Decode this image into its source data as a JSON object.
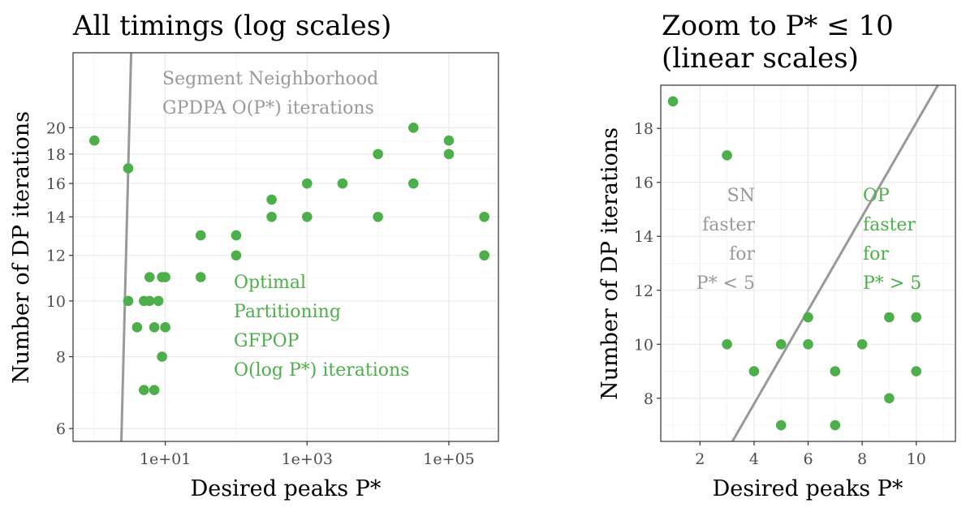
{
  "colors": {
    "point": "#4daf4a",
    "reference_line": "#999999",
    "annotation_grey": "#999999",
    "annotation_green": "#4daf4a",
    "grid_major": "#ebebeb",
    "grid_minor": "#f5f5f5",
    "panel_border": "#333333",
    "tick_text": "#4d4d4d"
  },
  "chart_data": [
    {
      "type": "scatter",
      "title": "All timings (log scales)",
      "xlabel": "Desired peaks P*",
      "ylabel": "Number of DP iterations",
      "x_scale": "log10",
      "y_scale": "log",
      "xlim": [
        0.5,
        500000
      ],
      "ylim": [
        5.7,
        27
      ],
      "x_ticks": [
        10,
        1000,
        100000
      ],
      "x_tick_labels": [
        "1e+01",
        "1e+03",
        "1e+05"
      ],
      "y_ticks": [
        6,
        8,
        10,
        12,
        14,
        16,
        18,
        20
      ],
      "y_tick_labels": [
        "6",
        "8",
        "10",
        "12",
        "14",
        "16",
        "18",
        "20"
      ],
      "grid": true,
      "reference_line": {
        "x": [
          2.4,
          3.3
        ],
        "y": [
          5.7,
          27
        ]
      },
      "points": [
        {
          "x": 1,
          "y": 19
        },
        {
          "x": 3,
          "y": 17
        },
        {
          "x": 3,
          "y": 10
        },
        {
          "x": 4,
          "y": 9
        },
        {
          "x": 5,
          "y": 10
        },
        {
          "x": 5,
          "y": 7
        },
        {
          "x": 6,
          "y": 11
        },
        {
          "x": 6,
          "y": 10
        },
        {
          "x": 7,
          "y": 9
        },
        {
          "x": 7,
          "y": 7
        },
        {
          "x": 8,
          "y": 10
        },
        {
          "x": 9,
          "y": 11
        },
        {
          "x": 9,
          "y": 8
        },
        {
          "x": 10,
          "y": 11
        },
        {
          "x": 10,
          "y": 9
        },
        {
          "x": 31.6,
          "y": 13
        },
        {
          "x": 31.6,
          "y": 11
        },
        {
          "x": 100,
          "y": 13
        },
        {
          "x": 100,
          "y": 12
        },
        {
          "x": 316,
          "y": 15
        },
        {
          "x": 316,
          "y": 14
        },
        {
          "x": 1000,
          "y": 16
        },
        {
          "x": 1000,
          "y": 14
        },
        {
          "x": 3162,
          "y": 16
        },
        {
          "x": 10000,
          "y": 18
        },
        {
          "x": 10000,
          "y": 14
        },
        {
          "x": 31623,
          "y": 20
        },
        {
          "x": 31623,
          "y": 16
        },
        {
          "x": 100000,
          "y": 19
        },
        {
          "x": 100000,
          "y": 18
        },
        {
          "x": 316228,
          "y": 14
        },
        {
          "x": 316228,
          "y": 12
        }
      ],
      "annotations": [
        {
          "text": "Segment Neighborhood",
          "color": "grey"
        },
        {
          "text": "GPDPA O(P*) iterations",
          "color": "grey"
        },
        {
          "text": "Optimal",
          "color": "green"
        },
        {
          "text": "Partitioning",
          "color": "green"
        },
        {
          "text": "GFPOP",
          "color": "green"
        },
        {
          "text": "O(log P*) iterations",
          "color": "green"
        }
      ]
    },
    {
      "type": "scatter",
      "title_lines": [
        "Zoom to P* ≤ 10",
        "(linear scales)"
      ],
      "xlabel": "Desired peaks P*",
      "ylabel": "Number of DP iterations",
      "x_scale": "linear",
      "y_scale": "linear",
      "xlim": [
        0.55,
        11.45
      ],
      "ylim": [
        6.4,
        19.6
      ],
      "x_ticks": [
        2,
        4,
        6,
        8,
        10
      ],
      "x_tick_labels": [
        "2",
        "4",
        "6",
        "8",
        "10"
      ],
      "y_ticks": [
        8,
        10,
        12,
        14,
        16,
        18
      ],
      "y_tick_labels": [
        "8",
        "10",
        "12",
        "14",
        "16",
        "18"
      ],
      "grid": true,
      "reference_line": {
        "x": [
          3.2,
          10.8
        ],
        "y": [
          6.4,
          19.6
        ]
      },
      "points": [
        {
          "x": 1,
          "y": 19
        },
        {
          "x": 3,
          "y": 17
        },
        {
          "x": 3,
          "y": 10
        },
        {
          "x": 4,
          "y": 9
        },
        {
          "x": 5,
          "y": 10
        },
        {
          "x": 5,
          "y": 7
        },
        {
          "x": 6,
          "y": 11
        },
        {
          "x": 6,
          "y": 10
        },
        {
          "x": 7,
          "y": 9
        },
        {
          "x": 7,
          "y": 7
        },
        {
          "x": 8,
          "y": 10
        },
        {
          "x": 9,
          "y": 11
        },
        {
          "x": 9,
          "y": 8
        },
        {
          "x": 10,
          "y": 11
        },
        {
          "x": 10,
          "y": 9
        }
      ],
      "annotations_left": [
        "SN",
        "faster",
        "for",
        "P* < 5"
      ],
      "annotations_right": [
        "OP",
        "faster",
        "for",
        "P* > 5"
      ]
    }
  ]
}
